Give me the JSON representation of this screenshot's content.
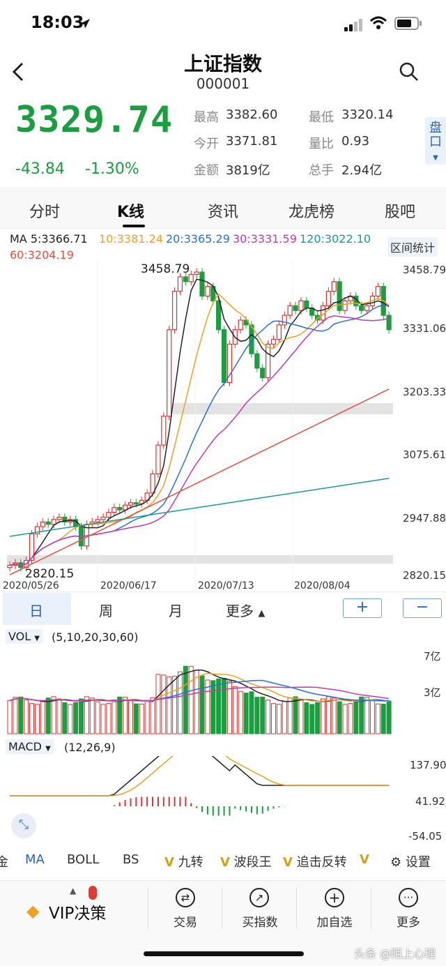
{
  "status": {
    "time": "18:03"
  },
  "header": {
    "title": "上证指数",
    "code": "000001"
  },
  "quote": {
    "price": "3329.74",
    "change": "-43.84",
    "change_pct": "-1.30%",
    "high_label": "最高",
    "high": "3382.60",
    "low_label": "最低",
    "low": "3320.14",
    "open_label": "今开",
    "open": "3371.81",
    "ratio_label": "量比",
    "ratio": "0.93",
    "amount_label": "金额",
    "amount": "3819亿",
    "hands_label": "总手",
    "hands": "2.94亿",
    "pankou": "盘口"
  },
  "tabs": [
    "分时",
    "K线",
    "资讯",
    "龙虎榜",
    "股吧"
  ],
  "ma_legend": {
    "ma5": "MA 5:3366.71",
    "ma10": "10:3381.24",
    "ma20": "20:3365.29",
    "ma30": "30:3331.59",
    "ma120": "120:3022.10",
    "ma60": "60:3204.19",
    "range_stats": "区间统计"
  },
  "kline": {
    "y_ticks": [
      "3458.79",
      "3331.06",
      "3203.33",
      "3075.61",
      "2947.88",
      "2820.15"
    ],
    "max_label": "3458.79",
    "min_label": "2820.15",
    "dates": [
      "2020/05/26",
      "2020/06/17",
      "2020/07/13",
      "2020/08/04"
    ]
  },
  "periods": {
    "day": "日",
    "week": "周",
    "month": "月",
    "more": "更多",
    "zoom_in": "+",
    "zoom_out": "−"
  },
  "volume": {
    "label": "VOL",
    "params": "(5,10,20,30,60)",
    "y_ticks": [
      "7亿",
      "3亿"
    ]
  },
  "macd": {
    "label": "MACD",
    "params": "(12,26,9)",
    "y_ticks": [
      "137.90",
      "41.92",
      "-54.05"
    ]
  },
  "indicators": {
    "gold": "金",
    "ma": "MA",
    "boll": "BOLL",
    "bs": "BS",
    "v1": "九转",
    "v2": "波段王",
    "v3": "追击反转",
    "settings": "设置",
    "vmark": "V"
  },
  "bottom_nav": {
    "vip": "VIP决策",
    "trade": "交易",
    "buy_index": "买指数",
    "add_watch": "加自选",
    "more": "更多"
  },
  "watermark": "头条 @陌上心理",
  "colors": {
    "up": "#e03131",
    "down": "#1a9e3f",
    "ma5": "#222222",
    "ma10": "#f0a020",
    "ma20": "#2a6fdb",
    "ma30": "#c03ab0",
    "ma60": "#e8503c",
    "ma120": "#1a9a9a"
  }
}
